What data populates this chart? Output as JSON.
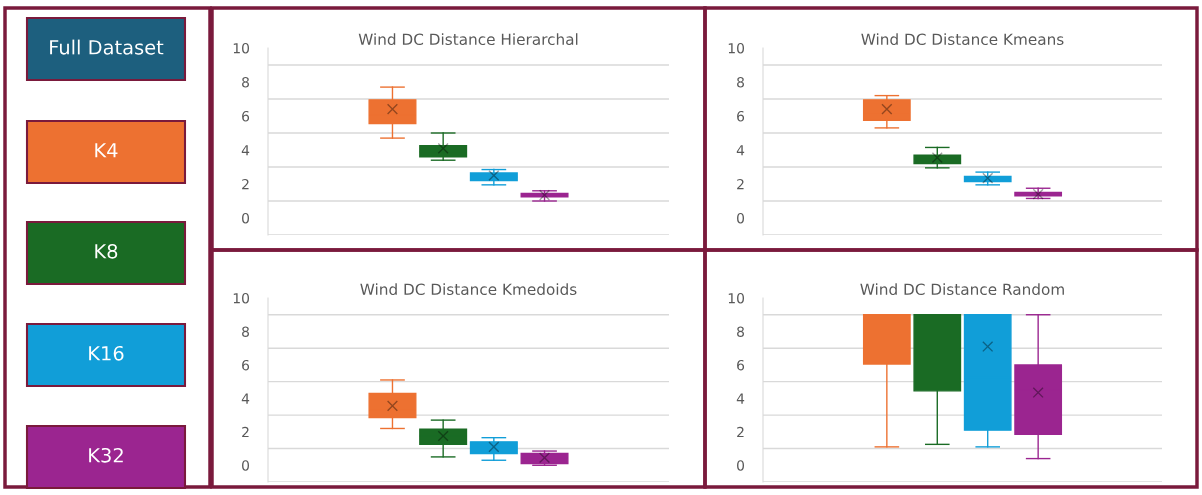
{
  "chart_data": [
    {
      "type": "other",
      "categories": [
        "Full Dataset",
        "K4",
        "K8",
        "K16",
        "K32"
      ],
      "colors": [
        "#1d5f7e",
        "#ed7131",
        "#1a6b24",
        "#119ed8",
        "#9b2590"
      ]
    },
    {
      "type": "box",
      "title": "Wind DC Distance Hierarchal",
      "categories": [
        null
      ],
      "ylim": [
        -1,
        10
      ],
      "yticks": [
        0,
        2,
        4,
        6,
        8,
        10
      ],
      "tick_labels": "y",
      "ref_lines": [
        {
          "axis": "y",
          "value": -1,
          "color": "#d9d9d9"
        },
        {
          "axis": "y",
          "value": 1,
          "color": "#d9d9d9"
        },
        {
          "axis": "y",
          "value": 3,
          "color": "#d9d9d9"
        },
        {
          "axis": "y",
          "value": 5,
          "color": "#d9d9d9"
        },
        {
          "axis": "y",
          "value": 7,
          "color": "#d9d9d9"
        },
        {
          "axis": "y",
          "value": 9,
          "color": "#d9d9d9"
        }
      ],
      "series": [
        {
          "color": "#ed7131",
          "boxes": [
            {
              "low": 4.7,
              "q1": 5.55,
              "median": 6.05,
              "q3": 6.95,
              "high": 7.7,
              "mean": 6.4
            }
          ]
        },
        {
          "color": "#1a6b24",
          "boxes": [
            {
              "low": 3.4,
              "q1": 3.6,
              "median": 3.9,
              "q3": 4.25,
              "high": 5.0,
              "mean": 4.1
            }
          ]
        },
        {
          "color": "#119ed8",
          "boxes": [
            {
              "low": 1.95,
              "q1": 2.2,
              "median": 2.4,
              "q3": 2.65,
              "high": 2.85,
              "mean": 2.5
            }
          ]
        },
        {
          "color": "#9b2590",
          "boxes": [
            {
              "low": 1.0,
              "q1": 1.25,
              "median": 1.35,
              "q3": 1.45,
              "high": 1.6,
              "mean": 1.35
            }
          ]
        }
      ]
    },
    {
      "type": "box",
      "title": "Wind DC Distance Kmeans",
      "categories": [
        null
      ],
      "ylim": [
        -1,
        10
      ],
      "yticks": [
        0,
        2,
        4,
        6,
        8,
        10
      ],
      "tick_labels": "y",
      "ref_lines": [
        {
          "axis": "y",
          "value": -1,
          "color": "#d9d9d9"
        },
        {
          "axis": "y",
          "value": 1,
          "color": "#d9d9d9"
        },
        {
          "axis": "y",
          "value": 3,
          "color": "#d9d9d9"
        },
        {
          "axis": "y",
          "value": 5,
          "color": "#d9d9d9"
        },
        {
          "axis": "y",
          "value": 7,
          "color": "#d9d9d9"
        },
        {
          "axis": "y",
          "value": 9,
          "color": "#d9d9d9"
        }
      ],
      "series": [
        {
          "color": "#ed7131",
          "boxes": [
            {
              "low": 5.3,
              "q1": 5.75,
              "median": 6.2,
              "q3": 6.95,
              "high": 7.2,
              "mean": 6.4
            }
          ]
        },
        {
          "color": "#1a6b24",
          "boxes": [
            {
              "low": 2.95,
              "q1": 3.2,
              "median": 3.45,
              "q3": 3.7,
              "high": 4.15,
              "mean": 3.55
            }
          ]
        },
        {
          "color": "#119ed8",
          "boxes": [
            {
              "low": 1.95,
              "q1": 2.15,
              "median": 2.3,
              "q3": 2.45,
              "high": 2.7,
              "mean": 2.35
            }
          ]
        },
        {
          "color": "#9b2590",
          "boxes": [
            {
              "low": 1.15,
              "q1": 1.3,
              "median": 1.45,
              "q3": 1.5,
              "high": 1.75,
              "mean": 1.4
            }
          ]
        }
      ]
    },
    {
      "type": "box",
      "title": "Wind DC Distance Kmedoids",
      "categories": [
        null
      ],
      "ylim": [
        -1,
        10
      ],
      "yticks": [
        0,
        2,
        4,
        6,
        8,
        10
      ],
      "tick_labels": "y",
      "ref_lines": [
        {
          "axis": "y",
          "value": -1,
          "color": "#d9d9d9"
        },
        {
          "axis": "y",
          "value": 1,
          "color": "#d9d9d9"
        },
        {
          "axis": "y",
          "value": 3,
          "color": "#d9d9d9"
        },
        {
          "axis": "y",
          "value": 5,
          "color": "#d9d9d9"
        },
        {
          "axis": "y",
          "value": 7,
          "color": "#d9d9d9"
        },
        {
          "axis": "y",
          "value": 9,
          "color": "#d9d9d9"
        }
      ],
      "series": [
        {
          "color": "#ed7131",
          "boxes": [
            {
              "low": 2.2,
              "q1": 2.85,
              "median": 3.3,
              "q3": 4.3,
              "high": 5.1,
              "mean": 3.55
            }
          ]
        },
        {
          "color": "#1a6b24",
          "boxes": [
            {
              "low": 0.5,
              "q1": 1.25,
              "median": 1.75,
              "q3": 2.15,
              "high": 2.7,
              "mean": 1.75
            }
          ]
        },
        {
          "color": "#119ed8",
          "boxes": [
            {
              "low": 0.3,
              "q1": 0.7,
              "median": 1.1,
              "q3": 1.4,
              "high": 1.65,
              "mean": 1.1
            }
          ]
        },
        {
          "color": "#9b2590",
          "boxes": [
            {
              "low": 0.0,
              "q1": 0.1,
              "median": 0.45,
              "q3": 0.7,
              "high": 0.85,
              "mean": 0.45
            }
          ]
        }
      ]
    },
    {
      "type": "box",
      "title": "Wind DC Distance Random",
      "categories": [
        null
      ],
      "ylim": [
        -1,
        10
      ],
      "yticks": [
        0,
        2,
        4,
        6,
        8,
        10
      ],
      "tick_labels": "y",
      "ref_lines": [
        {
          "axis": "y",
          "value": -1,
          "color": "#d9d9d9"
        },
        {
          "axis": "y",
          "value": 1,
          "color": "#d9d9d9"
        },
        {
          "axis": "y",
          "value": 3,
          "color": "#d9d9d9"
        },
        {
          "axis": "y",
          "value": 5,
          "color": "#d9d9d9"
        },
        {
          "axis": "y",
          "value": 7,
          "color": "#d9d9d9"
        },
        {
          "axis": "y",
          "value": 9,
          "color": "#d9d9d9"
        }
      ],
      "series": [
        {
          "color": "#ed7131",
          "boxes": [
            {
              "low": 1.1,
              "q1": 6.05,
              "median": 9,
              "q3": 9,
              "high": 9
            }
          ]
        },
        {
          "color": "#1a6b24",
          "boxes": [
            {
              "low": 1.25,
              "q1": 4.45,
              "median": 9,
              "q3": 9,
              "high": 9
            }
          ]
        },
        {
          "color": "#119ed8",
          "boxes": [
            {
              "low": 1.1,
              "q1": 2.1,
              "median": 5.25,
              "q3": 9,
              "high": 9,
              "mean": 7.1
            }
          ]
        },
        {
          "color": "#9b2590",
          "boxes": [
            {
              "low": 0.4,
              "q1": 1.85,
              "median": 4.5,
              "q3": 6.0,
              "high": 9,
              "mean": 4.35
            }
          ]
        }
      ]
    }
  ]
}
